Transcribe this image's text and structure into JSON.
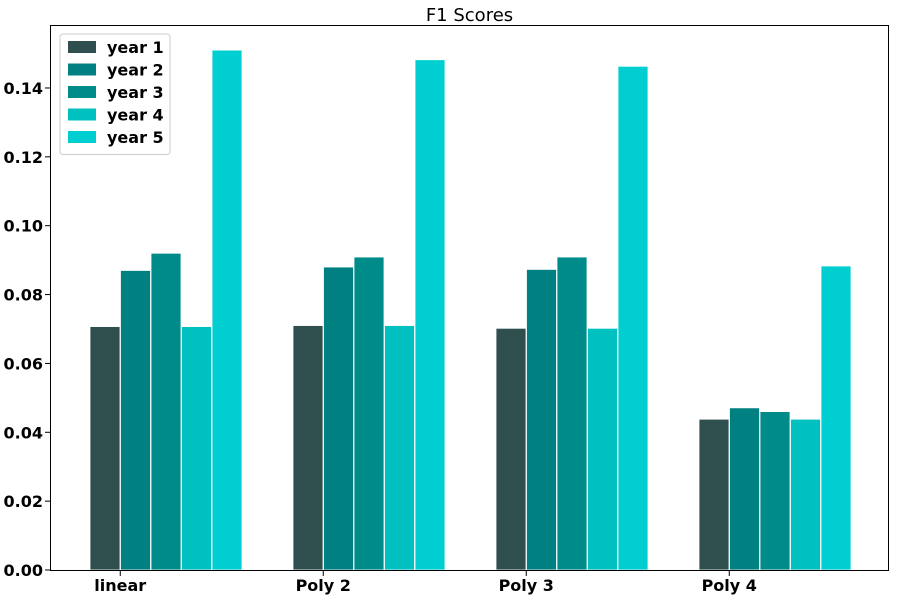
{
  "chart_data": {
    "type": "bar",
    "title": "F1 Scores",
    "xlabel": "",
    "ylabel": "",
    "categories": [
      "linear",
      "Poly 2",
      "Poly 3",
      "Poly 4"
    ],
    "series": [
      {
        "name": "year 1",
        "color": "#2f4f4f",
        "values": [
          0.0707,
          0.071,
          0.0702,
          0.0438
        ]
      },
      {
        "name": "year 2",
        "color": "#008080",
        "values": [
          0.087,
          0.088,
          0.0873,
          0.0471
        ]
      },
      {
        "name": "year 3",
        "color": "#008b8b",
        "values": [
          0.092,
          0.0909,
          0.0909,
          0.046
        ]
      },
      {
        "name": "year 4",
        "color": "#00c0c0",
        "values": [
          0.0707,
          0.071,
          0.0702,
          0.0438
        ]
      },
      {
        "name": "year 5",
        "color": "#00ced1",
        "values": [
          0.151,
          0.1482,
          0.1463,
          0.0883
        ]
      }
    ],
    "ylim": [
      0,
      0.158
    ],
    "yticks": [
      0.0,
      0.02,
      0.04,
      0.06,
      0.08,
      0.1,
      0.12,
      0.14
    ],
    "ytick_labels": [
      "0.00",
      "0.02",
      "0.04",
      "0.06",
      "0.08",
      "0.10",
      "0.12",
      "0.14"
    ],
    "grid": false,
    "legend_position": "top-left"
  }
}
